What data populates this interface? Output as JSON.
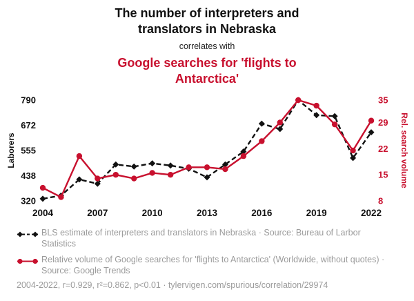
{
  "header": {
    "title": "The number of interpreters and translators in Nebraska",
    "connector": "correlates with",
    "subtitle": "Google searches for 'flights to Antarctica'"
  },
  "colors": {
    "accent": "#C8102E",
    "black": "#111111",
    "gray": "#9b9b9b"
  },
  "chart_data": {
    "type": "line",
    "x": [
      2004,
      2005,
      2006,
      2007,
      2008,
      2009,
      2010,
      2011,
      2012,
      2013,
      2014,
      2015,
      2016,
      2017,
      2018,
      2019,
      2020,
      2021,
      2022
    ],
    "x_ticks": [
      2004,
      2007,
      2010,
      2013,
      2016,
      2019,
      2022
    ],
    "left_axis": {
      "label": "Laborers",
      "ticks": [
        320,
        438,
        555,
        672,
        790
      ],
      "min": 320,
      "max": 790
    },
    "right_axis": {
      "label": "Rel. search volume",
      "ticks": [
        8,
        15,
        22,
        29,
        35
      ],
      "min": 8,
      "max": 35
    },
    "grid": false,
    "legend_position": "bottom",
    "series": [
      {
        "name": "BLS estimate of interpreters and translators in Nebraska",
        "axis": "left",
        "style": "dashed",
        "marker": "diamond",
        "color": "#111111",
        "values": [
          330,
          345,
          420,
          400,
          490,
          480,
          495,
          485,
          470,
          430,
          490,
          550,
          680,
          655,
          790,
          720,
          715,
          520,
          640
        ]
      },
      {
        "name": "Relative volume of Google searches for 'flights to Antarctica'",
        "axis": "right",
        "style": "solid",
        "marker": "circle",
        "color": "#C8102E",
        "values": [
          11.5,
          9,
          20,
          14,
          15,
          14,
          15.5,
          15,
          17,
          17,
          16.5,
          20,
          24,
          29,
          35,
          33.5,
          28.5,
          21.5,
          29.5
        ]
      }
    ]
  },
  "legend": [
    {
      "text": "BLS estimate of interpreters and translators in Nebraska · Source: Bureau of Larbor Statistics"
    },
    {
      "text": "Relative volume of Google searches for 'flights to Antarctica' (Worldwide, without quotes) · Source: Google Trends"
    }
  ],
  "footer": "2004-2022, r=0.929, r²=0.862, p<0.01 · tylervigen.com/spurious/correlation/29974"
}
